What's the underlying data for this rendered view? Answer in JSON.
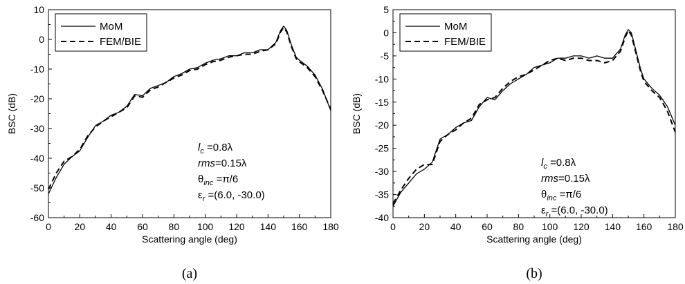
{
  "chart_data": [
    {
      "type": "line",
      "panel_label": "(a)",
      "xlabel": "Scattering angle (deg)",
      "ylabel": "BSC (dB)",
      "xlim": [
        0,
        180
      ],
      "ylim": [
        -60,
        10
      ],
      "xticks": [
        0,
        20,
        40,
        60,
        80,
        100,
        120,
        140,
        160,
        180
      ],
      "yticks": [
        -60,
        -50,
        -40,
        -30,
        -20,
        -10,
        0,
        10
      ],
      "legend": {
        "placement": "top-left",
        "entries": [
          "MoM",
          "FEM/BIE"
        ]
      },
      "annotations": {
        "lc": {
          "sym": "l",
          "sub": "c",
          "val": " =0.8λ"
        },
        "rms": {
          "sym": "rms",
          "sub": "",
          "val": "=0.15λ"
        },
        "theta": {
          "sym": "θ",
          "sub": "inc",
          "val": " =π/6"
        },
        "eps": {
          "sym": "ε",
          "sub": "r",
          "val": " =(6.0, -30.0)"
        }
      },
      "series": [
        {
          "name": "MoM",
          "style": "solid",
          "x": [
            0,
            5,
            10,
            15,
            20,
            25,
            30,
            35,
            40,
            45,
            50,
            55,
            60,
            65,
            70,
            75,
            80,
            85,
            90,
            95,
            100,
            105,
            110,
            115,
            120,
            125,
            130,
            135,
            140,
            145,
            148,
            150,
            152,
            155,
            158,
            160,
            165,
            170,
            175,
            180
          ],
          "y": [
            -52,
            -46.5,
            -42,
            -39.5,
            -37.5,
            -33,
            -29,
            -27.5,
            -25.5,
            -24.5,
            -22.5,
            -18.5,
            -19,
            -16.5,
            -15.5,
            -14.5,
            -12.5,
            -11.5,
            -10,
            -9.5,
            -8,
            -7,
            -6.5,
            -5.5,
            -5.5,
            -4.5,
            -4.5,
            -3.5,
            -3.5,
            -1,
            3,
            4.5,
            3,
            -2,
            -6,
            -7,
            -9,
            -12,
            -17,
            -24
          ]
        },
        {
          "name": "FEM/BIE",
          "style": "dashed",
          "x": [
            0,
            5,
            10,
            15,
            20,
            25,
            30,
            35,
            40,
            45,
            50,
            55,
            60,
            65,
            70,
            75,
            80,
            85,
            90,
            95,
            100,
            105,
            110,
            115,
            120,
            125,
            130,
            135,
            140,
            145,
            148,
            150,
            152,
            155,
            158,
            160,
            165,
            170,
            175,
            180
          ],
          "y": [
            -50.5,
            -45,
            -41,
            -39.5,
            -37,
            -32.5,
            -29.5,
            -27.5,
            -26,
            -24.5,
            -23,
            -19,
            -19.5,
            -17,
            -16,
            -14.5,
            -13,
            -12,
            -10.5,
            -10,
            -8.5,
            -7.5,
            -7,
            -6,
            -5.5,
            -5,
            -5,
            -4,
            -3.5,
            -1.5,
            2.5,
            4,
            2.5,
            -2.5,
            -6.5,
            -7.5,
            -9.5,
            -12.5,
            -17.5,
            -23.5
          ]
        }
      ]
    },
    {
      "type": "line",
      "panel_label": "(b)",
      "xlabel": "Scattering angle (deg)",
      "ylabel": "BSC (dB)",
      "xlim": [
        0,
        180
      ],
      "ylim": [
        -40,
        5
      ],
      "xticks": [
        0,
        20,
        40,
        60,
        80,
        100,
        120,
        140,
        160,
        180
      ],
      "yticks": [
        -40,
        -35,
        -30,
        -25,
        -20,
        -15,
        -10,
        -5,
        0,
        5
      ],
      "legend": {
        "placement": "top-left",
        "entries": [
          "MoM",
          "FEM/BIE"
        ]
      },
      "annotations": {
        "lc": {
          "sym": "l",
          "sub": "c",
          "val": " =0.8λ"
        },
        "rms": {
          "sym": "rms",
          "sub": "",
          "val": "=0.15λ"
        },
        "theta": {
          "sym": "θ",
          "sub": "inc",
          "val": " =π/6"
        },
        "eps": {
          "sym": "ε",
          "sub": "r",
          "val": " =(6.0, -30.0)"
        }
      },
      "series": [
        {
          "name": "MoM",
          "style": "solid",
          "x": [
            0,
            5,
            10,
            15,
            20,
            25,
            30,
            35,
            40,
            45,
            50,
            55,
            60,
            65,
            70,
            75,
            80,
            85,
            90,
            95,
            100,
            105,
            110,
            115,
            120,
            125,
            130,
            135,
            140,
            145,
            148,
            150,
            152,
            155,
            158,
            160,
            165,
            170,
            175,
            180
          ],
          "y": [
            -37.5,
            -34.5,
            -32.5,
            -30.5,
            -29.5,
            -28,
            -23,
            -22,
            -20.5,
            -19.5,
            -19,
            -16,
            -14,
            -14.5,
            -12.5,
            -11,
            -10,
            -9,
            -7.5,
            -7,
            -6.5,
            -5.5,
            -5.5,
            -5,
            -5,
            -5.5,
            -5,
            -5.5,
            -5.5,
            -3.5,
            -0.5,
            0.7,
            0,
            -4,
            -8,
            -10,
            -12,
            -13.5,
            -16,
            -20
          ]
        },
        {
          "name": "FEM/BIE",
          "style": "dashed",
          "x": [
            0,
            5,
            10,
            15,
            20,
            25,
            30,
            35,
            40,
            45,
            50,
            55,
            60,
            65,
            70,
            75,
            80,
            85,
            90,
            95,
            100,
            105,
            110,
            115,
            120,
            125,
            130,
            135,
            140,
            145,
            148,
            150,
            152,
            155,
            158,
            160,
            165,
            170,
            175,
            180
          ],
          "y": [
            -37,
            -34,
            -31.5,
            -29.5,
            -28.5,
            -28.5,
            -23.5,
            -22,
            -21,
            -19.5,
            -18.5,
            -15.5,
            -14.5,
            -14,
            -12,
            -10.5,
            -9.5,
            -9,
            -8,
            -7,
            -6,
            -5.5,
            -6,
            -5.5,
            -5.5,
            -6,
            -6,
            -6.5,
            -6,
            -4,
            -1,
            0.5,
            -0.5,
            -4.5,
            -8.5,
            -10.5,
            -12.5,
            -14,
            -17,
            -21.5
          ]
        }
      ]
    }
  ]
}
